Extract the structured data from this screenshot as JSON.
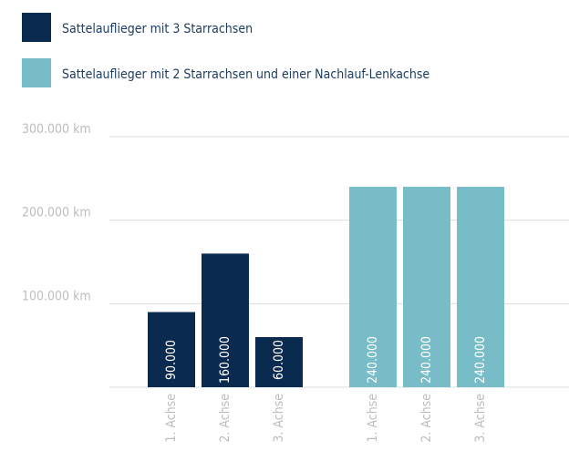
{
  "chart_data": {
    "type": "bar",
    "categories": [
      "1. Achse",
      "2. Achse",
      "3. Achse"
    ],
    "series": [
      {
        "name": "Sattelauflieger mit 3 Starrachsen",
        "color": "#0b2a4f",
        "values": [
          90000,
          160000,
          60000
        ],
        "value_labels": [
          "90.000",
          "160.000",
          "60.000"
        ]
      },
      {
        "name": "Sattelauflieger mit 2 Starrachsen und einer Nachlauf-Lenkachse",
        "color": "#77bcc6",
        "values": [
          240000,
          240000,
          240000
        ],
        "value_labels": [
          "240.000",
          "240.000",
          "240.000"
        ]
      }
    ],
    "ylim": [
      0,
      300000
    ],
    "yticks": [
      {
        "value": 100000,
        "label": "100.000 km"
      },
      {
        "value": 200000,
        "label": "200.000 km"
      },
      {
        "value": 300000,
        "label": "300.000 km"
      }
    ],
    "grid": true
  }
}
